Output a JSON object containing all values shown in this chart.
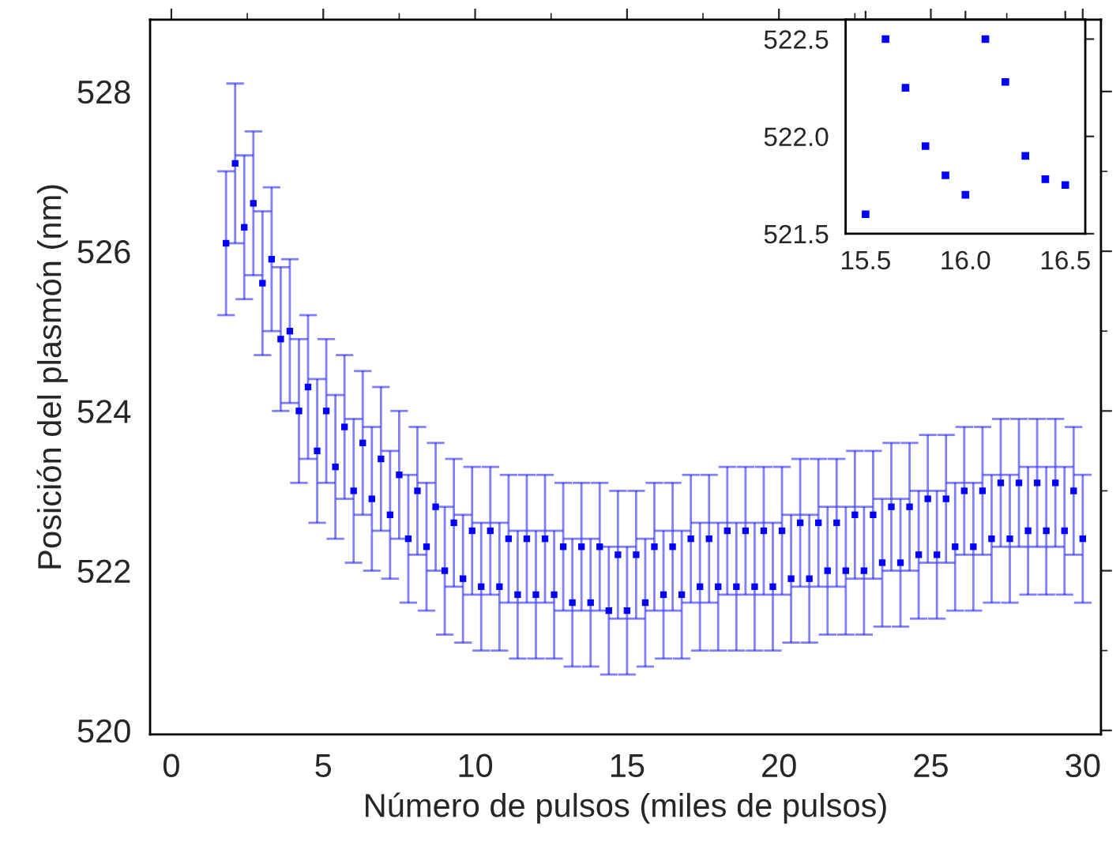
{
  "chart_data": [
    {
      "type": "scatter",
      "xlabel": "Número de pulsos (miles de pulsos)",
      "ylabel": "Posición del plasmón (nm)",
      "xlim": [
        -0.7,
        30.6
      ],
      "ylim": [
        519.95,
        528.9
      ],
      "xticks": [
        0,
        5,
        10,
        15,
        20,
        25,
        30
      ],
      "yticks": [
        520,
        522,
        524,
        526,
        528
      ],
      "grid": false,
      "marker": "square",
      "series": [
        {
          "color": "#0000ff",
          "x": [
            1.8,
            2.1,
            2.4,
            2.7,
            3.0,
            3.3,
            3.6,
            3.9,
            4.2,
            4.5,
            4.8,
            5.1,
            5.4,
            5.7,
            6.0,
            6.3,
            6.6,
            6.9,
            7.2,
            7.5,
            7.8,
            8.1,
            8.4,
            8.7,
            9.0,
            9.3,
            9.6,
            9.9,
            10.2,
            10.5,
            10.8,
            11.1,
            11.4,
            11.7,
            12.0,
            12.3,
            12.6,
            12.9,
            13.2,
            13.5,
            13.8,
            14.1,
            14.4,
            14.7,
            15.0,
            15.3,
            15.6,
            15.9,
            16.2,
            16.5,
            16.8,
            17.1,
            17.4,
            17.7,
            18.0,
            18.3,
            18.6,
            18.9,
            19.2,
            19.5,
            19.8,
            20.1,
            20.4,
            20.7,
            21.0,
            21.3,
            21.6,
            21.9,
            22.2,
            22.5,
            22.8,
            23.1,
            23.4,
            23.7,
            24.0,
            24.3,
            24.6,
            24.9,
            25.2,
            25.5,
            25.8,
            26.1,
            26.4,
            26.7,
            27.0,
            27.3,
            27.6,
            27.9,
            28.2,
            28.5,
            28.8,
            29.1,
            29.4,
            29.7,
            30.0
          ],
          "values": [
            526.1,
            527.1,
            526.3,
            526.6,
            525.6,
            525.9,
            524.9,
            525.0,
            524.0,
            524.3,
            523.5,
            524.0,
            523.3,
            523.8,
            523.0,
            523.6,
            522.9,
            523.4,
            522.7,
            523.2,
            522.4,
            523.0,
            522.3,
            522.8,
            522.0,
            522.6,
            521.9,
            522.5,
            521.8,
            522.5,
            521.8,
            522.4,
            521.7,
            522.4,
            521.7,
            522.4,
            521.7,
            522.3,
            521.6,
            522.3,
            521.6,
            522.3,
            521.5,
            522.2,
            521.5,
            522.2,
            521.6,
            522.3,
            521.7,
            522.3,
            521.7,
            522.4,
            521.8,
            522.4,
            521.8,
            522.5,
            521.8,
            522.5,
            521.8,
            522.5,
            521.8,
            522.5,
            521.9,
            522.6,
            521.9,
            522.6,
            522.0,
            522.6,
            522.0,
            522.7,
            522.0,
            522.7,
            522.1,
            522.8,
            522.1,
            522.8,
            522.2,
            522.9,
            522.2,
            522.9,
            522.3,
            523.0,
            522.3,
            523.0,
            522.4,
            523.1,
            522.4,
            523.1,
            522.5,
            523.1,
            522.5,
            523.1,
            522.5,
            523.0,
            522.4
          ],
          "errors": [
            0.9,
            1.0,
            0.9,
            0.9,
            0.9,
            0.9,
            0.9,
            0.9,
            0.9,
            0.9,
            0.9,
            0.9,
            0.9,
            0.9,
            0.9,
            0.9,
            0.9,
            0.9,
            0.8,
            0.8,
            0.8,
            0.8,
            0.8,
            0.8,
            0.8,
            0.8,
            0.8,
            0.8,
            0.8,
            0.8,
            0.8,
            0.8,
            0.8,
            0.8,
            0.8,
            0.8,
            0.8,
            0.8,
            0.8,
            0.8,
            0.8,
            0.8,
            0.8,
            0.8,
            0.8,
            0.8,
            0.8,
            0.8,
            0.8,
            0.8,
            0.8,
            0.8,
            0.8,
            0.8,
            0.8,
            0.8,
            0.8,
            0.8,
            0.8,
            0.8,
            0.8,
            0.8,
            0.8,
            0.8,
            0.8,
            0.8,
            0.8,
            0.8,
            0.8,
            0.8,
            0.8,
            0.8,
            0.8,
            0.8,
            0.8,
            0.8,
            0.8,
            0.8,
            0.8,
            0.8,
            0.8,
            0.8,
            0.8,
            0.8,
            0.8,
            0.8,
            0.8,
            0.8,
            0.8,
            0.8,
            0.8,
            0.8,
            0.8,
            0.8,
            0.8
          ]
        }
      ]
    },
    {
      "type": "scatter",
      "xlim": [
        15.4,
        16.6
      ],
      "ylim": [
        521.5,
        522.6
      ],
      "xticks": [
        15.5,
        {
          "value": 16.0,
          "label": "16.0"
        },
        16.5
      ],
      "yticks": [
        521.5,
        {
          "value": 522.0,
          "label": "522.0"
        },
        522.5
      ],
      "grid": false,
      "marker": "square",
      "series": [
        {
          "color": "#0000ff",
          "x": [
            15.5,
            15.6,
            15.7,
            15.8,
            15.9,
            16.0,
            16.1,
            16.2,
            16.3,
            16.4,
            16.5
          ],
          "values": [
            521.6,
            522.5,
            522.25,
            521.95,
            521.8,
            521.7,
            522.5,
            522.28,
            521.9,
            521.78,
            521.75
          ]
        }
      ]
    }
  ]
}
